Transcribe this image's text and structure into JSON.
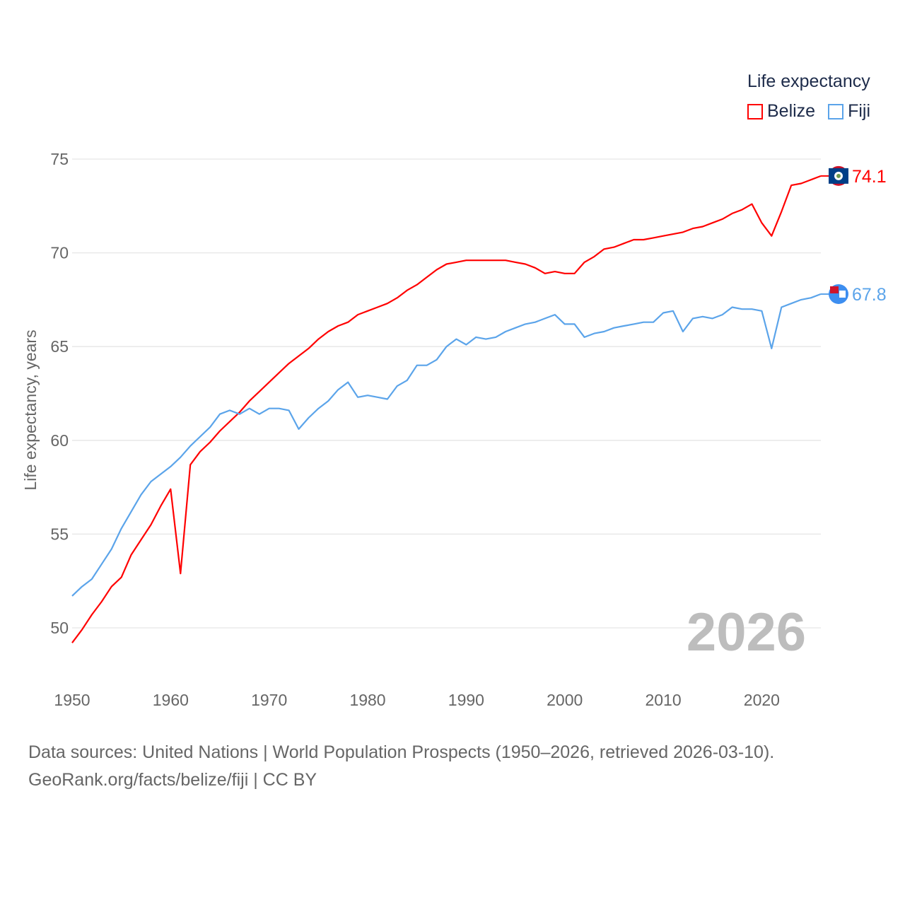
{
  "chart_data": {
    "type": "line",
    "title": "",
    "xlabel": "",
    "ylabel": "Life expectancy, years",
    "xlim": [
      1950,
      2026
    ],
    "ylim": [
      48.5,
      77
    ],
    "yticks": [
      50,
      55,
      60,
      65,
      70,
      75
    ],
    "xticks": [
      1950,
      1960,
      1970,
      1980,
      1990,
      2000,
      2010,
      2020
    ],
    "grid": true,
    "legend_title": "Life expectancy",
    "legend_position": "top-right",
    "year_annotation": "2026",
    "x": [
      1950,
      1951,
      1952,
      1953,
      1954,
      1955,
      1956,
      1957,
      1958,
      1959,
      1960,
      1961,
      1962,
      1963,
      1964,
      1965,
      1966,
      1967,
      1968,
      1969,
      1970,
      1971,
      1972,
      1973,
      1974,
      1975,
      1976,
      1977,
      1978,
      1979,
      1980,
      1981,
      1982,
      1983,
      1984,
      1985,
      1986,
      1987,
      1988,
      1989,
      1990,
      1991,
      1992,
      1993,
      1994,
      1995,
      1996,
      1997,
      1998,
      1999,
      2000,
      2001,
      2002,
      2003,
      2004,
      2005,
      2006,
      2007,
      2008,
      2009,
      2010,
      2011,
      2012,
      2013,
      2014,
      2015,
      2016,
      2017,
      2018,
      2019,
      2020,
      2021,
      2022,
      2023,
      2024,
      2025,
      2026
    ],
    "series": [
      {
        "name": "Belize",
        "color": "#ff0000",
        "end_label": "74.1",
        "flag": "belize-flag",
        "values": [
          49.2,
          49.9,
          50.7,
          51.4,
          52.2,
          52.7,
          53.9,
          54.7,
          55.5,
          56.5,
          57.4,
          52.9,
          58.7,
          59.4,
          59.9,
          60.5,
          61.0,
          61.5,
          62.1,
          62.6,
          63.1,
          63.6,
          64.1,
          64.5,
          64.9,
          65.4,
          65.8,
          66.1,
          66.3,
          66.7,
          66.9,
          67.1,
          67.3,
          67.6,
          68.0,
          68.3,
          68.7,
          69.1,
          69.4,
          69.5,
          69.6,
          69.6,
          69.6,
          69.6,
          69.6,
          69.5,
          69.4,
          69.2,
          68.9,
          69.0,
          68.9,
          68.9,
          69.5,
          69.8,
          70.2,
          70.3,
          70.5,
          70.7,
          70.7,
          70.8,
          70.9,
          71.0,
          71.1,
          71.3,
          71.4,
          71.6,
          71.8,
          72.1,
          72.3,
          72.6,
          71.6,
          70.9,
          72.2,
          73.6,
          73.7,
          73.9,
          74.1
        ]
      },
      {
        "name": "Fiji",
        "color": "#5ba4ea",
        "end_label": "67.8",
        "flag": "fiji-flag",
        "values": [
          51.7,
          52.2,
          52.6,
          53.4,
          54.2,
          55.3,
          56.2,
          57.1,
          57.8,
          58.2,
          58.6,
          59.1,
          59.7,
          60.2,
          60.7,
          61.4,
          61.6,
          61.4,
          61.7,
          61.4,
          61.7,
          61.7,
          61.6,
          60.6,
          61.2,
          61.7,
          62.1,
          62.7,
          63.1,
          62.3,
          62.4,
          62.3,
          62.2,
          62.9,
          63.2,
          64.0,
          64.0,
          64.3,
          65.0,
          65.4,
          65.1,
          65.5,
          65.4,
          65.5,
          65.8,
          66.0,
          66.2,
          66.3,
          66.5,
          66.7,
          66.2,
          66.2,
          65.5,
          65.7,
          65.8,
          66.0,
          66.1,
          66.2,
          66.3,
          66.3,
          66.8,
          66.9,
          65.8,
          66.5,
          66.6,
          66.5,
          66.7,
          67.1,
          67.0,
          67.0,
          66.9,
          64.9,
          67.1,
          67.3,
          67.5,
          67.6,
          67.8
        ]
      }
    ]
  },
  "source": {
    "line1": "Data sources: United Nations | World Population Prospects (1950–2026, retrieved 2026-03-10).",
    "line2": "GeoRank.org/facts/belize/fiji | CC BY"
  }
}
